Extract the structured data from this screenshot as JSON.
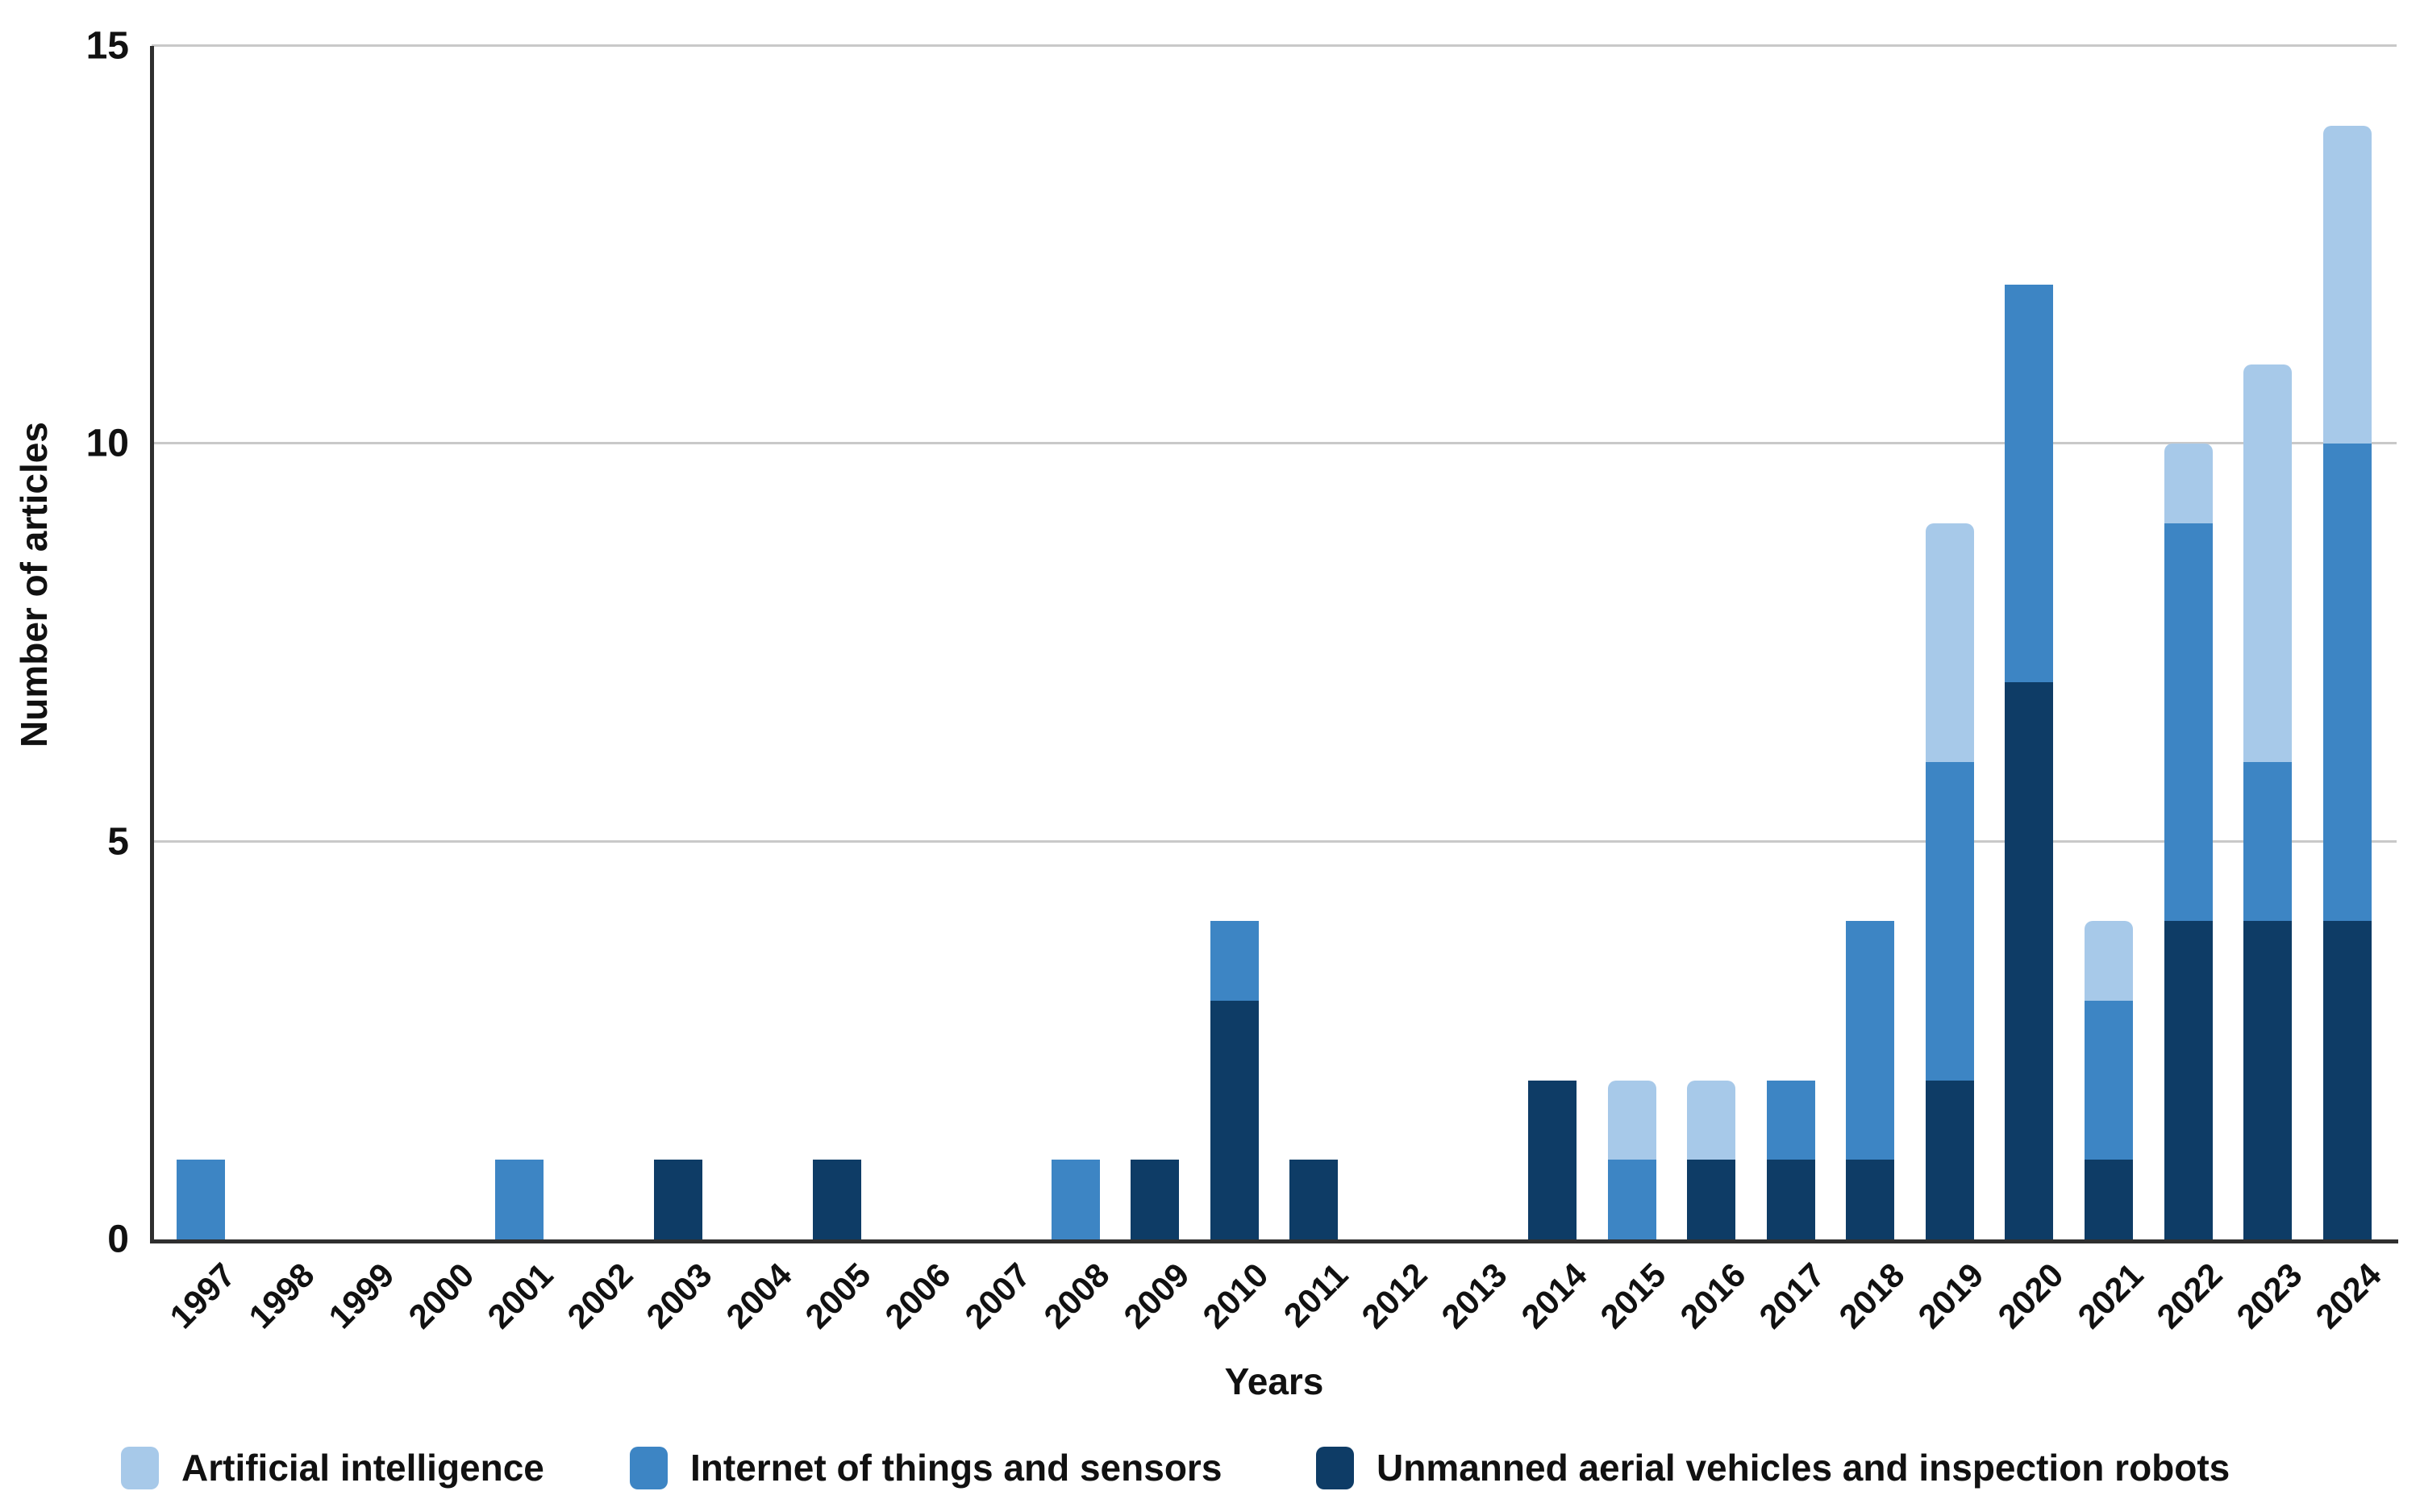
{
  "chart_data": {
    "type": "bar",
    "stacked": true,
    "title": "",
    "xlabel": "Years",
    "ylabel": "Number of articles",
    "categories": [
      "1997",
      "1998",
      "1999",
      "2000",
      "2001",
      "2002",
      "2003",
      "2004",
      "2005",
      "2006",
      "2007",
      "2008",
      "2009",
      "2010",
      "2011",
      "2012",
      "2013",
      "2014",
      "2015",
      "2016",
      "2017",
      "2018",
      "2019",
      "2020",
      "2021",
      "2022",
      "2023",
      "2024"
    ],
    "series": [
      {
        "name": "Artificial intelligence",
        "color": "#A7C9E9",
        "values": [
          0,
          0,
          0,
          0,
          0,
          0,
          0,
          0,
          0,
          0,
          0,
          0,
          0,
          0,
          0,
          0,
          0,
          0,
          1,
          1,
          0,
          0,
          3,
          0,
          1,
          1,
          5,
          4
        ]
      },
      {
        "name": "Internet of things and sensors",
        "color": "#3D85C4",
        "values": [
          1,
          0,
          0,
          0,
          1,
          0,
          0,
          0,
          0,
          0,
          0,
          1,
          0,
          1,
          0,
          0,
          0,
          0,
          1,
          0,
          1,
          3,
          4,
          5,
          2,
          5,
          2,
          6
        ]
      },
      {
        "name": "Unmanned aerial vehicles and inspection robots",
        "color": "#0E3C66",
        "values": [
          0,
          0,
          0,
          0,
          0,
          0,
          1,
          0,
          1,
          0,
          0,
          0,
          1,
          3,
          1,
          0,
          0,
          2,
          0,
          1,
          1,
          1,
          2,
          7,
          1,
          4,
          4,
          4
        ]
      }
    ],
    "stack_order_bottom_to_top": [
      "Unmanned aerial vehicles and inspection robots",
      "Internet of things and sensors",
      "Artificial intelligence"
    ],
    "ylim": [
      0,
      15
    ],
    "yticks": [
      0,
      5,
      10,
      15
    ],
    "grid": true,
    "legend_position": "bottom"
  },
  "colors": {
    "gridline": "#c9c9c9",
    "axis_line": "#2f2f2f",
    "text": "#111111",
    "background": "#ffffff"
  }
}
